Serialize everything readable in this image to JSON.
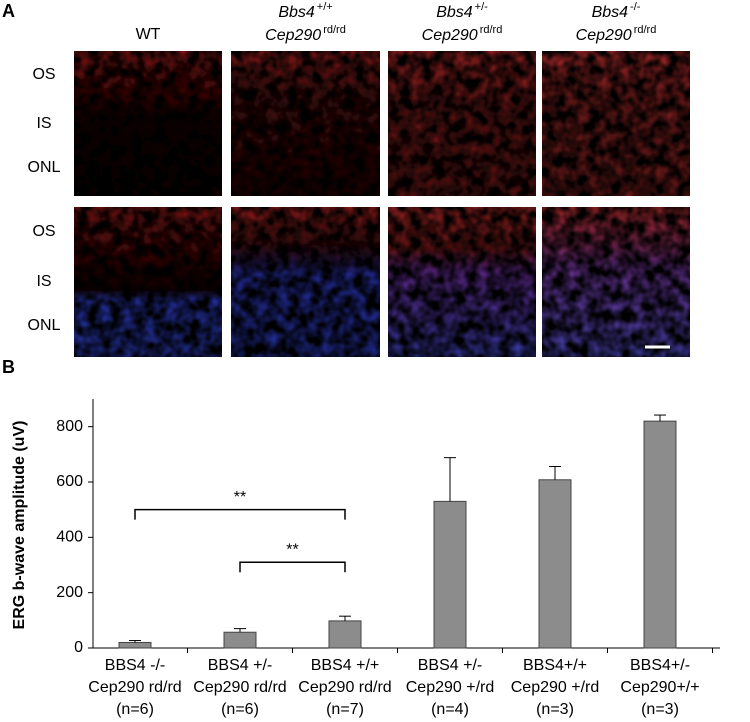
{
  "panel_a": {
    "label": "A",
    "columns": [
      {
        "name": "WT"
      },
      {
        "gene1": "Bbs4",
        "sup1": "+/+",
        "gene2": "Cep290",
        "sup2": "rd/rd"
      },
      {
        "gene1": "Bbs4",
        "sup1": "+/-",
        "gene2": "Cep290",
        "sup2": "rd/rd"
      },
      {
        "gene1": "Bbs4",
        "sup1": "-/-",
        "gene2": "Cep290",
        "sup2": "rd/rd"
      }
    ],
    "rows": [
      [
        "OS",
        "IS",
        "ONL"
      ],
      [
        "OS",
        "IS",
        "ONL"
      ]
    ]
  },
  "chart_data": {
    "type": "bar",
    "panel_label": "B",
    "y_label": "ERG b-wave amplitude (uV)",
    "categories": [
      [
        "BBS4 -/-",
        "Cep290 rd/rd",
        "(n=6)"
      ],
      [
        "BBS4 +/-",
        "Cep290 rd/rd",
        "(n=6)"
      ],
      [
        "BBS4 +/+",
        "Cep290 rd/rd",
        "(n=7)"
      ],
      [
        "BBS4 +/-",
        "Cep290 +/rd",
        "(n=4)"
      ],
      [
        "BBS4+/+",
        "Cep290 +/rd",
        "(n=3)"
      ],
      [
        "BBS4+/-",
        "Cep290+/+",
        "(n=3)"
      ]
    ],
    "values": [
      20,
      57,
      98,
      530,
      608,
      820
    ],
    "errors": [
      7,
      13,
      17,
      158,
      48,
      22
    ],
    "color": "#8c8c8c",
    "ylim": [
      0,
      900
    ],
    "yticks": [
      0,
      200,
      400,
      600,
      800
    ],
    "annotations": [
      {
        "text": "**",
        "y": 500
      },
      {
        "text": "**",
        "y": 310
      }
    ]
  }
}
